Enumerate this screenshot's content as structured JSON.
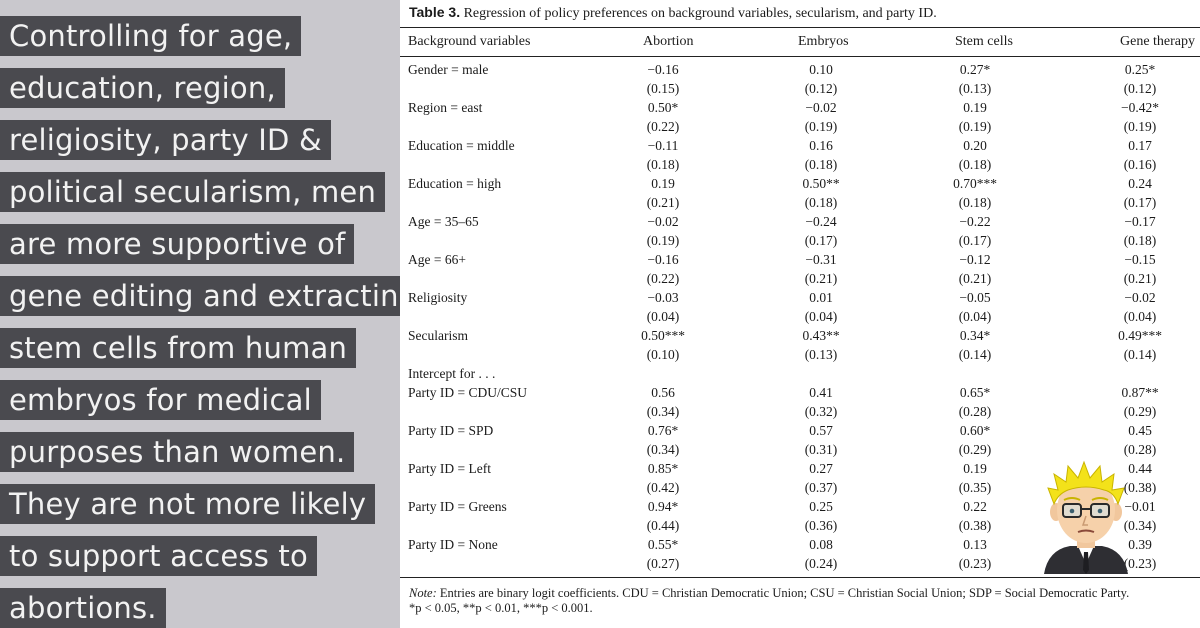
{
  "commentary": {
    "lines": [
      "Controlling for age,",
      "education, region,",
      "religiosity, party ID &",
      "political secularism, men",
      "are more supportive of",
      "gene editing and extracting",
      "stem cells from human",
      "embryos for medical",
      "purposes than women.",
      "They are not more likely",
      "to support access to",
      "abortions."
    ]
  },
  "table": {
    "label": "Table 3.",
    "title": "Regression of policy preferences on background variables, secularism, and party ID.",
    "headers": [
      "Background variables",
      "Abortion",
      "Embryos",
      "Stem cells",
      "Gene therapy"
    ],
    "intercept_label": "Intercept for . . .",
    "rows_top": [
      {
        "label": "Gender = male",
        "coef": [
          "−0.16",
          "0.10",
          "0.27*",
          "0.25*"
        ],
        "se": [
          "(0.15)",
          "(0.12)",
          "(0.13)",
          "(0.12)"
        ]
      },
      {
        "label": "Region = east",
        "coef": [
          "0.50*",
          "−0.02",
          "0.19",
          "−0.42*"
        ],
        "se": [
          "(0.22)",
          "(0.19)",
          "(0.19)",
          "(0.19)"
        ]
      },
      {
        "label": "Education = middle",
        "coef": [
          "−0.11",
          "0.16",
          "0.20",
          "0.17"
        ],
        "se": [
          "(0.18)",
          "(0.18)",
          "(0.18)",
          "(0.16)"
        ]
      },
      {
        "label": "Education = high",
        "coef": [
          "0.19",
          "0.50**",
          "0.70***",
          "0.24"
        ],
        "se": [
          "(0.21)",
          "(0.18)",
          "(0.18)",
          "(0.17)"
        ]
      },
      {
        "label": "Age = 35–65",
        "coef": [
          "−0.02",
          "−0.24",
          "−0.22",
          "−0.17"
        ],
        "se": [
          "(0.19)",
          "(0.17)",
          "(0.17)",
          "(0.18)"
        ]
      },
      {
        "label": "Age = 66+",
        "coef": [
          "−0.16",
          "−0.31",
          "−0.12",
          "−0.15"
        ],
        "se": [
          "(0.22)",
          "(0.21)",
          "(0.21)",
          "(0.21)"
        ]
      },
      {
        "label": "Religiosity",
        "coef": [
          "−0.03",
          "0.01",
          "−0.05",
          "−0.02"
        ],
        "se": [
          "(0.04)",
          "(0.04)",
          "(0.04)",
          "(0.04)"
        ]
      },
      {
        "label": "Secularism",
        "coef": [
          "0.50***",
          "0.43**",
          "0.34*",
          "0.49***"
        ],
        "se": [
          "(0.10)",
          "(0.13)",
          "(0.14)",
          "(0.14)"
        ]
      }
    ],
    "rows_party": [
      {
        "label": "Party ID = CDU/CSU",
        "coef": [
          "0.56",
          "0.41",
          "0.65*",
          "0.87**"
        ],
        "se": [
          "(0.34)",
          "(0.32)",
          "(0.28)",
          "(0.29)"
        ]
      },
      {
        "label": "Party ID = SPD",
        "coef": [
          "0.76*",
          "0.57",
          "0.60*",
          "0.45"
        ],
        "se": [
          "(0.34)",
          "(0.31)",
          "(0.29)",
          "(0.28)"
        ]
      },
      {
        "label": "Party ID = Left",
        "coef": [
          "0.85*",
          "0.27",
          "0.19",
          "0.44"
        ],
        "se": [
          "(0.42)",
          "(0.37)",
          "(0.35)",
          "(0.38)"
        ]
      },
      {
        "label": "Party ID = Greens",
        "coef": [
          "0.94*",
          "0.25",
          "0.22",
          "−0.01"
        ],
        "se": [
          "(0.44)",
          "(0.36)",
          "(0.38)",
          "(0.34)"
        ]
      },
      {
        "label": "Party ID = None",
        "coef": [
          "0.55*",
          "0.08",
          "0.13",
          "0.39"
        ],
        "se": [
          "(0.27)",
          "(0.24)",
          "(0.23)",
          "(0.23)"
        ]
      }
    ],
    "note_label": "Note:",
    "note_text": "Entries are binary logit coefficients. CDU = Christian Democratic Union; CSU = Christian Social Union; SDP = Social Democratic Party.",
    "note_sig": "*p < 0.05, **p < 0.01, ***p < 0.001."
  },
  "avatar": {
    "icon": "cartoon-avatar-icon",
    "hair_color": "#f3e21a",
    "glasses_color": "#2a2a2a"
  },
  "colors": {
    "background": "#c9c8cd",
    "text_highlight": "#4a4a4f",
    "highlight_text": "#f2f2f2"
  }
}
